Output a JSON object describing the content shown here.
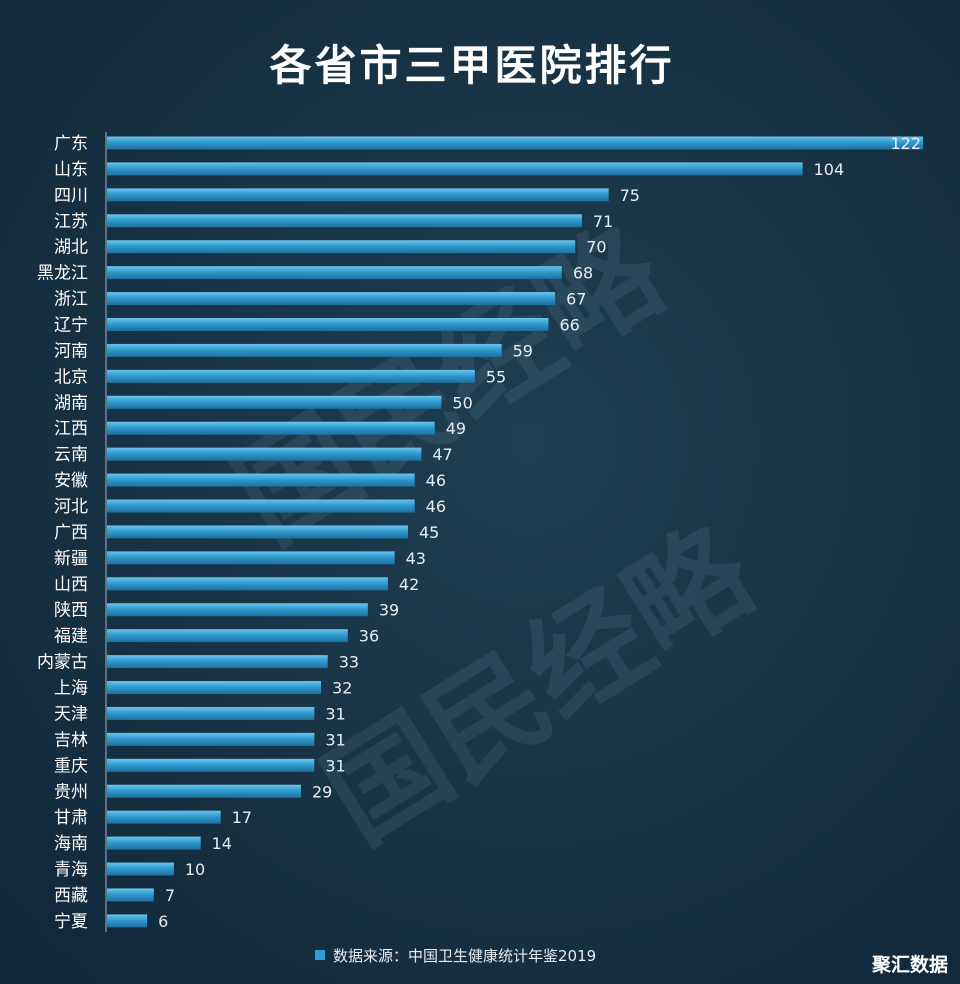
{
  "colors": {
    "bar": "#2f9bd0",
    "bar_top": "#6cc4ee",
    "bar_bottom": "#1d6f9d",
    "background": "#173244"
  },
  "watermark": "国民经略",
  "brand": "聚汇数据",
  "chart_data": {
    "type": "bar",
    "orientation": "horizontal",
    "title": "各省市三甲医院排行",
    "legend": "数据来源：中国卫生健康统计年鉴2019",
    "legend_position": "bottom",
    "xlabel": "",
    "ylabel": "",
    "xlim": [
      0,
      122
    ],
    "grid": false,
    "categories": [
      "广东",
      "山东",
      "四川",
      "江苏",
      "湖北",
      "黑龙江",
      "浙江",
      "辽宁",
      "河南",
      "北京",
      "湖南",
      "江西",
      "云南",
      "安徽",
      "河北",
      "广西",
      "新疆",
      "山西",
      "陕西",
      "福建",
      "内蒙古",
      "上海",
      "天津",
      "吉林",
      "重庆",
      "贵州",
      "甘肃",
      "海南",
      "青海",
      "西藏",
      "宁夏"
    ],
    "values": [
      122,
      104,
      75,
      71,
      70,
      68,
      67,
      66,
      59,
      55,
      50,
      49,
      47,
      46,
      46,
      45,
      43,
      42,
      39,
      36,
      33,
      32,
      31,
      31,
      31,
      29,
      17,
      14,
      10,
      7,
      6
    ]
  }
}
